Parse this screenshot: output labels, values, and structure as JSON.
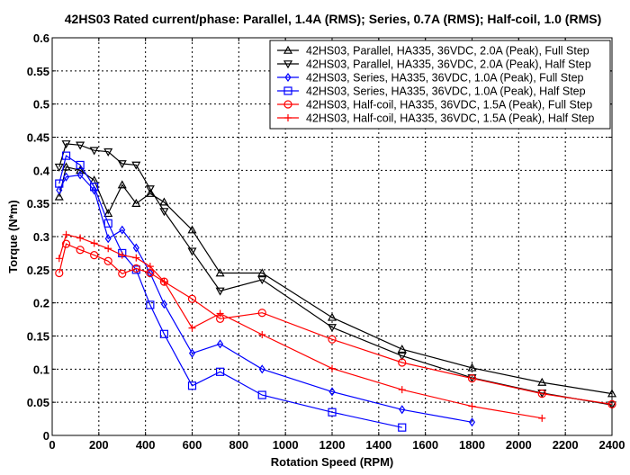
{
  "chart_data": {
    "type": "line",
    "title": "42HS03 Rated current/phase: Parallel, 1.4A (RMS); Series, 0.7A (RMS); Half-coil, 1.0 (RMS)",
    "xlabel": "Rotation Speed (RPM)",
    "ylabel": "Torque (N*m)",
    "xlim": [
      0,
      2400
    ],
    "ylim": [
      0,
      0.6
    ],
    "xticks": [
      0,
      200,
      400,
      600,
      800,
      1000,
      1200,
      1400,
      1600,
      1800,
      2000,
      2200,
      2400
    ],
    "yticks": [
      0,
      0.05,
      0.1,
      0.15,
      0.2,
      0.25,
      0.3,
      0.35,
      0.4,
      0.45,
      0.5,
      0.55,
      0.6
    ],
    "ytick_labels": [
      "0",
      "0.05",
      "0.1",
      "0.15",
      "0.2",
      "0.25",
      "0.3",
      "0.35",
      "0.4",
      "0.45",
      "0.5",
      "0.55",
      "0.6"
    ],
    "grid": true,
    "legend_position": "top-right",
    "series": [
      {
        "name": "42HS03, Parallel, HA335, 36VDC, 2.0A (Peak), Full Step",
        "color": "#000000",
        "marker": "triangle-up",
        "x": [
          30,
          60,
          120,
          180,
          240,
          300,
          360,
          420,
          480,
          600,
          720,
          900,
          1200,
          1500,
          1800,
          2100,
          2400
        ],
        "y": [
          0.36,
          0.405,
          0.4,
          0.385,
          0.335,
          0.378,
          0.35,
          0.365,
          0.352,
          0.31,
          0.245,
          0.245,
          0.178,
          0.13,
          0.102,
          0.08,
          0.063
        ]
      },
      {
        "name": "42HS03, Parallel, HA335, 36VDC, 2.0A (Peak), Half Step",
        "color": "#000000",
        "marker": "triangle-down",
        "x": [
          30,
          60,
          120,
          180,
          240,
          300,
          360,
          420,
          480,
          600,
          720,
          900,
          1200,
          1500,
          1800,
          2100,
          2400
        ],
        "y": [
          0.405,
          0.44,
          0.438,
          0.43,
          0.428,
          0.41,
          0.408,
          0.372,
          0.338,
          0.278,
          0.218,
          0.235,
          0.163,
          0.12,
          0.087,
          0.064,
          0.046
        ]
      },
      {
        "name": "42HS03, Series, HA335, 36VDC, 1.0A (Peak), Full Step",
        "color": "#0000ff",
        "marker": "diamond",
        "x": [
          30,
          60,
          120,
          180,
          240,
          300,
          360,
          420,
          480,
          600,
          720,
          900,
          1200,
          1500,
          1800
        ],
        "y": [
          0.37,
          0.39,
          0.393,
          0.37,
          0.297,
          0.31,
          0.283,
          0.245,
          0.198,
          0.124,
          0.138,
          0.1,
          0.066,
          0.039,
          0.02
        ]
      },
      {
        "name": "42HS03, Series, HA335, 36VDC, 1.0A (Peak), Half Step",
        "color": "#0000ff",
        "marker": "square",
        "x": [
          30,
          60,
          120,
          180,
          240,
          300,
          360,
          420,
          480,
          600,
          720,
          900,
          1200,
          1500
        ],
        "y": [
          0.38,
          0.422,
          0.408,
          0.375,
          0.32,
          0.275,
          0.25,
          0.197,
          0.153,
          0.075,
          0.096,
          0.061,
          0.035,
          0.012
        ]
      },
      {
        "name": "42HS03, Half-coil, HA335, 36VDC, 1.5A (Peak), Full Step",
        "color": "#ff0000",
        "marker": "circle",
        "x": [
          30,
          60,
          120,
          180,
          240,
          300,
          360,
          420,
          480,
          600,
          720,
          900,
          1200,
          1500,
          1800,
          2100,
          2400
        ],
        "y": [
          0.245,
          0.289,
          0.28,
          0.272,
          0.263,
          0.244,
          0.252,
          0.245,
          0.232,
          0.206,
          0.176,
          0.185,
          0.145,
          0.11,
          0.086,
          0.063,
          0.047
        ]
      },
      {
        "name": "42HS03, Half-coil, HA335, 36VDC, 1.5A (Peak), Half Step",
        "color": "#ff0000",
        "marker": "plus",
        "x": [
          30,
          60,
          120,
          180,
          240,
          300,
          360,
          420,
          480,
          600,
          720,
          900,
          1200,
          1500,
          1800,
          2100
        ],
        "y": [
          0.267,
          0.303,
          0.298,
          0.29,
          0.282,
          0.272,
          0.268,
          0.255,
          0.232,
          0.162,
          0.184,
          0.152,
          0.101,
          0.069,
          0.044,
          0.026
        ]
      }
    ]
  }
}
